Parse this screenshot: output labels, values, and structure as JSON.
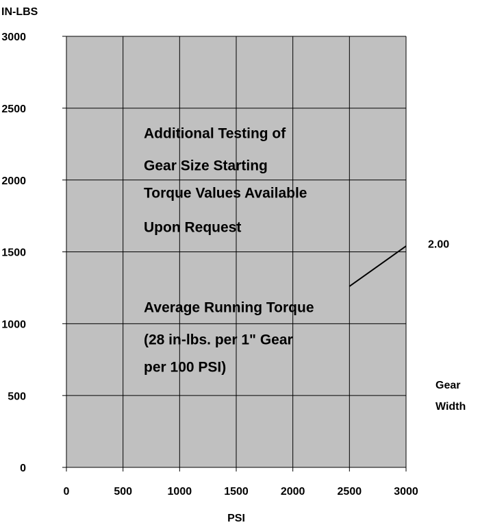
{
  "chart_data": {
    "type": "line",
    "ylabel": "IN-LBS",
    "xlabel": "PSI",
    "x": [
      2500,
      3000
    ],
    "series": [
      {
        "name": "2.00",
        "color": "#000000",
        "values": [
          1260,
          1540
        ]
      }
    ],
    "legend_title": [
      "Gear",
      "Width"
    ],
    "xlim": [
      0,
      3000
    ],
    "xticks": [
      0,
      500,
      1000,
      1500,
      2000,
      2500,
      3000
    ],
    "ylim": [
      0,
      3000
    ],
    "yticks": [
      0,
      500,
      1000,
      1500,
      2000,
      2500,
      3000
    ],
    "grid": true,
    "plot_color": "#c0c0c0",
    "annotations": [
      {
        "lines": [
          "Additional Testing of",
          "Gear Size Starting",
          "Torque Values Available",
          "Upon Request"
        ]
      },
      {
        "lines": [
          "Average Running Torque",
          "(28 in-lbs. per 1\" Gear",
          "per 100 PSI)"
        ]
      }
    ]
  }
}
